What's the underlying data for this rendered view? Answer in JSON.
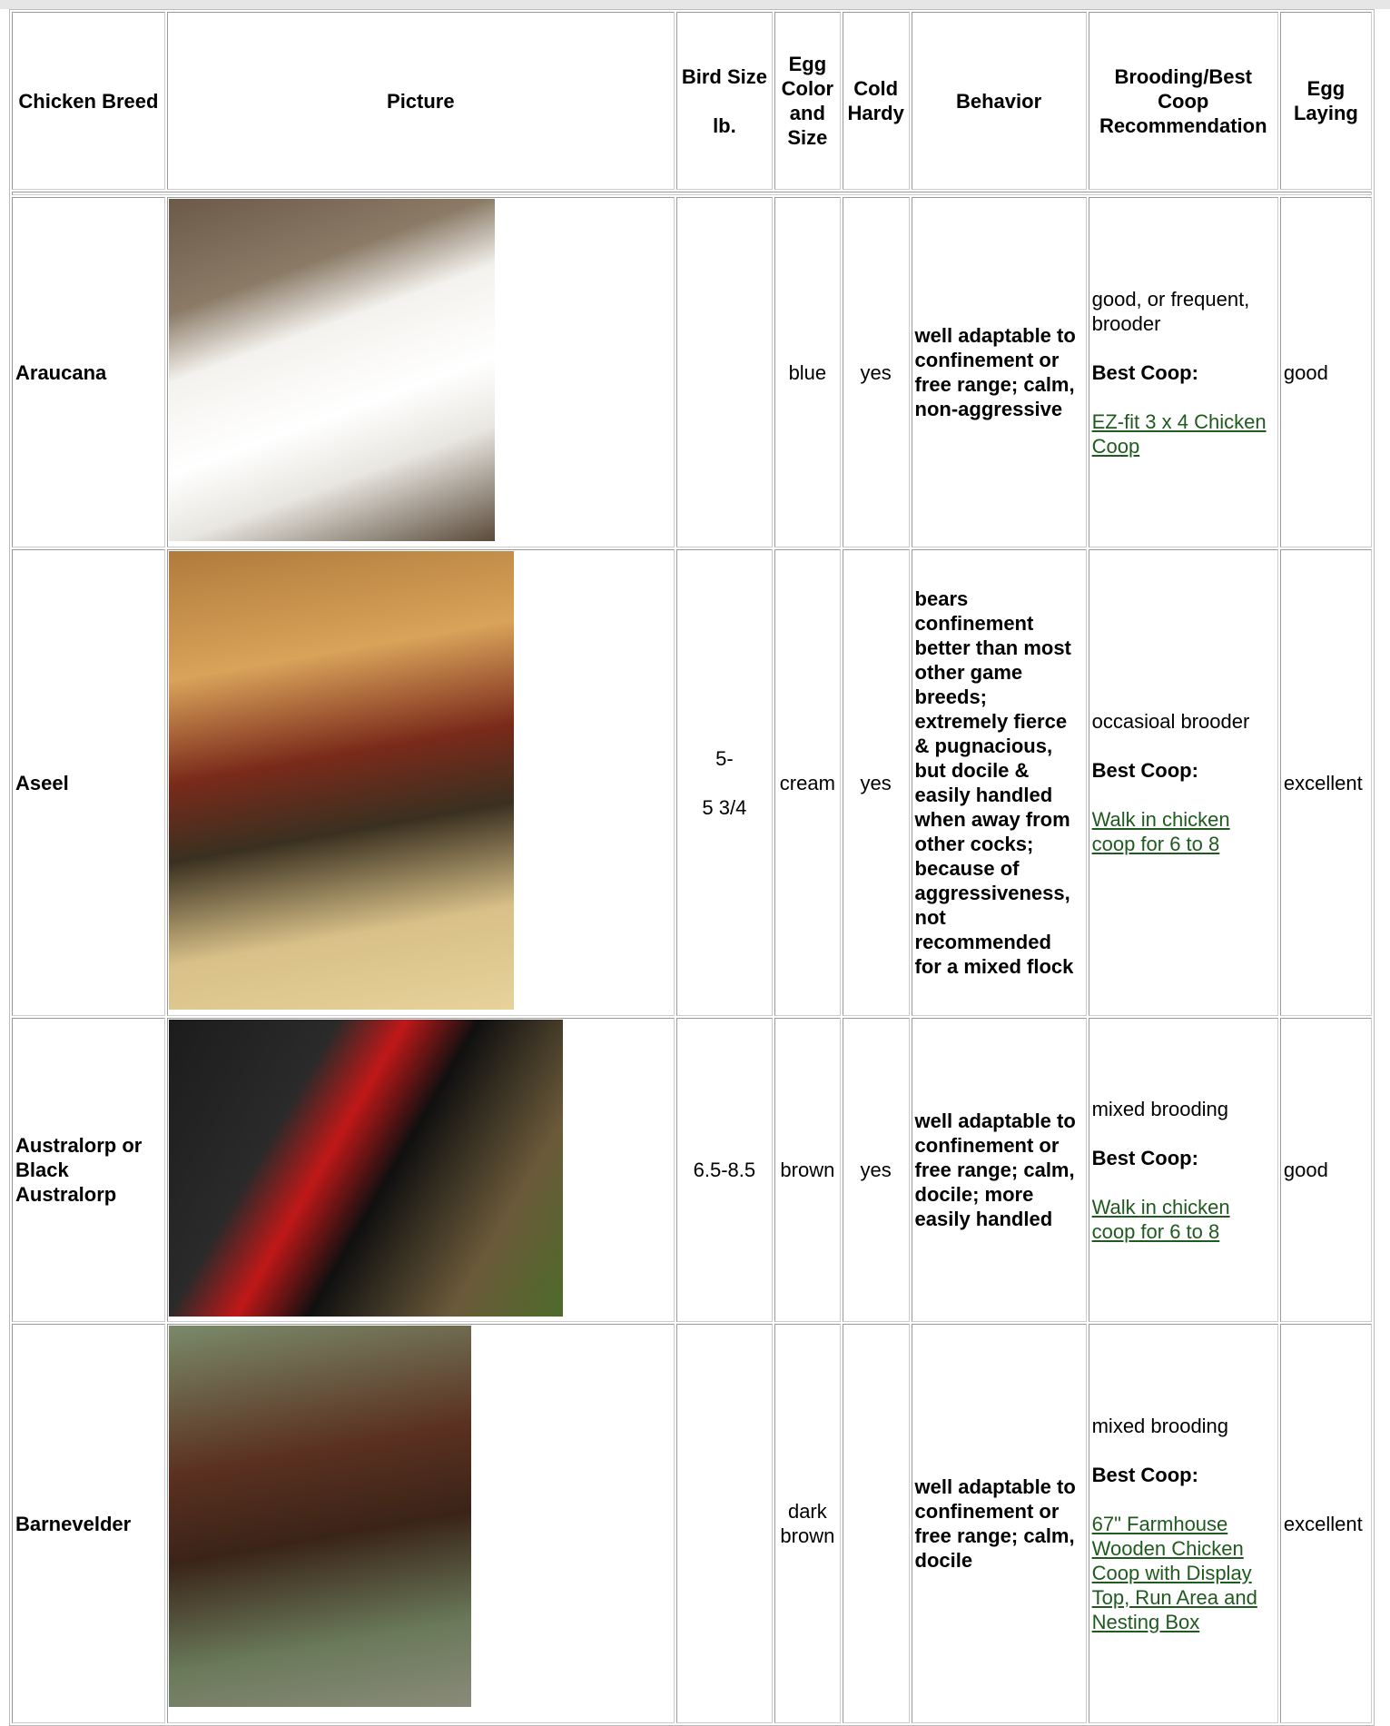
{
  "table": {
    "headers": [
      [
        "Chicken Breed"
      ],
      [
        "Picture"
      ],
      [
        "Bird Size",
        "lb."
      ],
      [
        "Egg Color and Size"
      ],
      [
        "Cold Hardy"
      ],
      [
        "Behavior"
      ],
      [
        "Brooding/Best Coop Recommendation"
      ],
      [
        "Egg Laying"
      ]
    ],
    "rows": [
      {
        "breed": "Araucana",
        "size": null,
        "egg": "blue",
        "cold": "yes",
        "behavior": "well adaptable to confinement or free range; calm, non-aggressive",
        "brooding": {
          "text": "good, or frequent, brooder",
          "label": "Best Coop:",
          "link": "EZ-fit 3 x 4 Chicken Coop"
        },
        "laying": "good"
      },
      {
        "breed": "Aseel",
        "size": [
          "5-",
          "5 3/4"
        ],
        "egg": "cream",
        "cold": "yes",
        "behavior": "bears confinement better than most other game breeds; extremely fierce & pugnacious, but docile & easily handled when away from other cocks; because of aggressiveness, not recommended for a mixed flock",
        "brooding": {
          "text": "occasioal brooder",
          "label": "Best Coop:",
          "link": "Walk in chicken coop for 6 to 8"
        },
        "laying": "excellent"
      },
      {
        "breed": "Australorp or Black Australorp",
        "size": [
          "6.5-8.5"
        ],
        "egg": "brown",
        "cold": "yes",
        "behavior": "well adaptable to confinement or free range; calm, docile; more easily handled",
        "brooding": {
          "text": "mixed brooding",
          "label": "Best Coop:",
          "link": "Walk in chicken coop for 6 to 8"
        },
        "laying": "good"
      },
      {
        "breed": "Barnevelder",
        "size": null,
        "egg": "dark brown",
        "cold": null,
        "behavior": "well adaptable to confinement or free range; calm, docile",
        "brooding": {
          "text": "mixed brooding",
          "label": "Best Coop:",
          "link": "67\" Farmhouse Wooden Chicken Coop with Display Top, Run Area and Nesting Box"
        },
        "laying": "excellent"
      }
    ]
  }
}
